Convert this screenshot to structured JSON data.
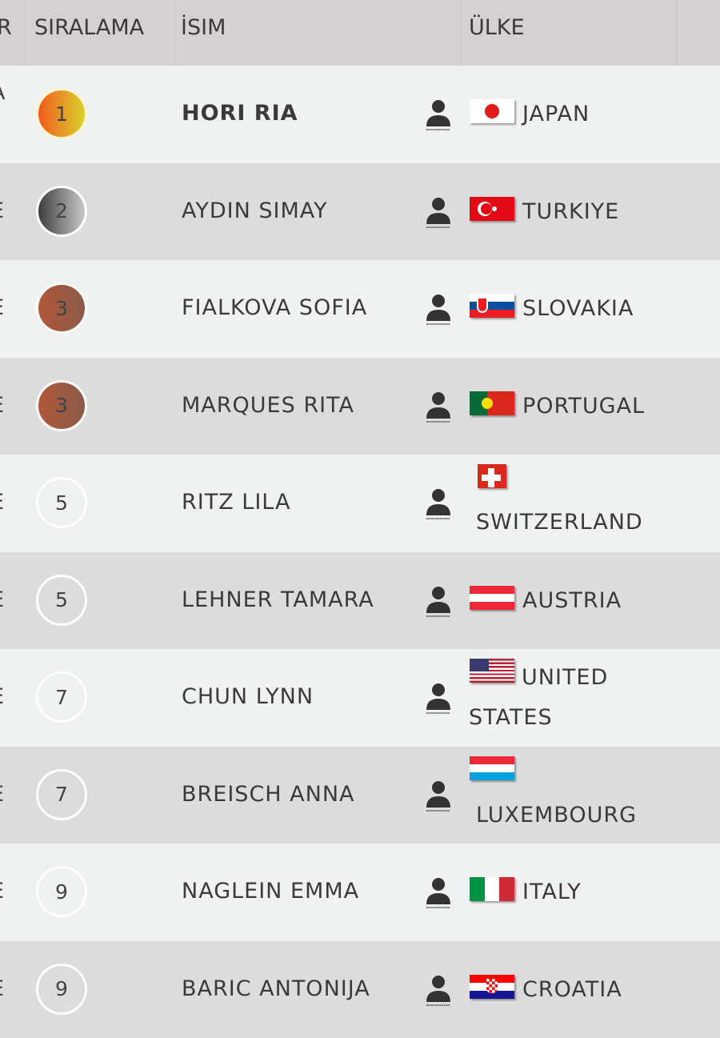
{
  "header": {
    "partial_col": "R",
    "rank": "SIRALAMA",
    "name": "İSIM",
    "country": "ÜLKE"
  },
  "rows": [
    {
      "partial": "A",
      "rank": "1",
      "medal": "gold",
      "name": "HORI RIA",
      "bold": true,
      "country": "JAPAN",
      "flag": "japan"
    },
    {
      "partial": "E",
      "rank": "2",
      "medal": "silver",
      "name": "AYDIN SIMAY",
      "country": "TURKIYE",
      "flag": "turkey"
    },
    {
      "partial": "E",
      "rank": "3",
      "medal": "bronze",
      "name": "FIALKOVA SOFIA",
      "country": "SLOVAKIA",
      "flag": "slovakia"
    },
    {
      "partial": "E",
      "rank": "3",
      "medal": "bronze",
      "name": "MARQUES RITA",
      "country": "PORTUGAL",
      "flag": "portugal"
    },
    {
      "partial": "E",
      "rank": "5",
      "medal": "none",
      "name": "RITZ LILA",
      "country": "SWITZERLAND",
      "flag": "switzerland"
    },
    {
      "partial": "E",
      "rank": "5",
      "medal": "none",
      "name": "LEHNER TAMARA",
      "country": "AUSTRIA",
      "flag": "austria"
    },
    {
      "partial": "E",
      "rank": "7",
      "medal": "none",
      "name": "CHUN LYNN",
      "country": "UNITED STATES",
      "flag": "usa"
    },
    {
      "partial": "E",
      "rank": "7",
      "medal": "none",
      "name": "BREISCH ANNA",
      "country": "LUXEMBOURG",
      "flag": "luxembourg"
    },
    {
      "partial": "E",
      "rank": "9",
      "medal": "none",
      "name": "NAGLEIN EMMA",
      "country": "ITALY",
      "flag": "italy"
    },
    {
      "partial": "E",
      "rank": "9",
      "medal": "none",
      "name": "BARIC ANTONIJA",
      "country": "CROATIA",
      "flag": "croatia"
    }
  ]
}
